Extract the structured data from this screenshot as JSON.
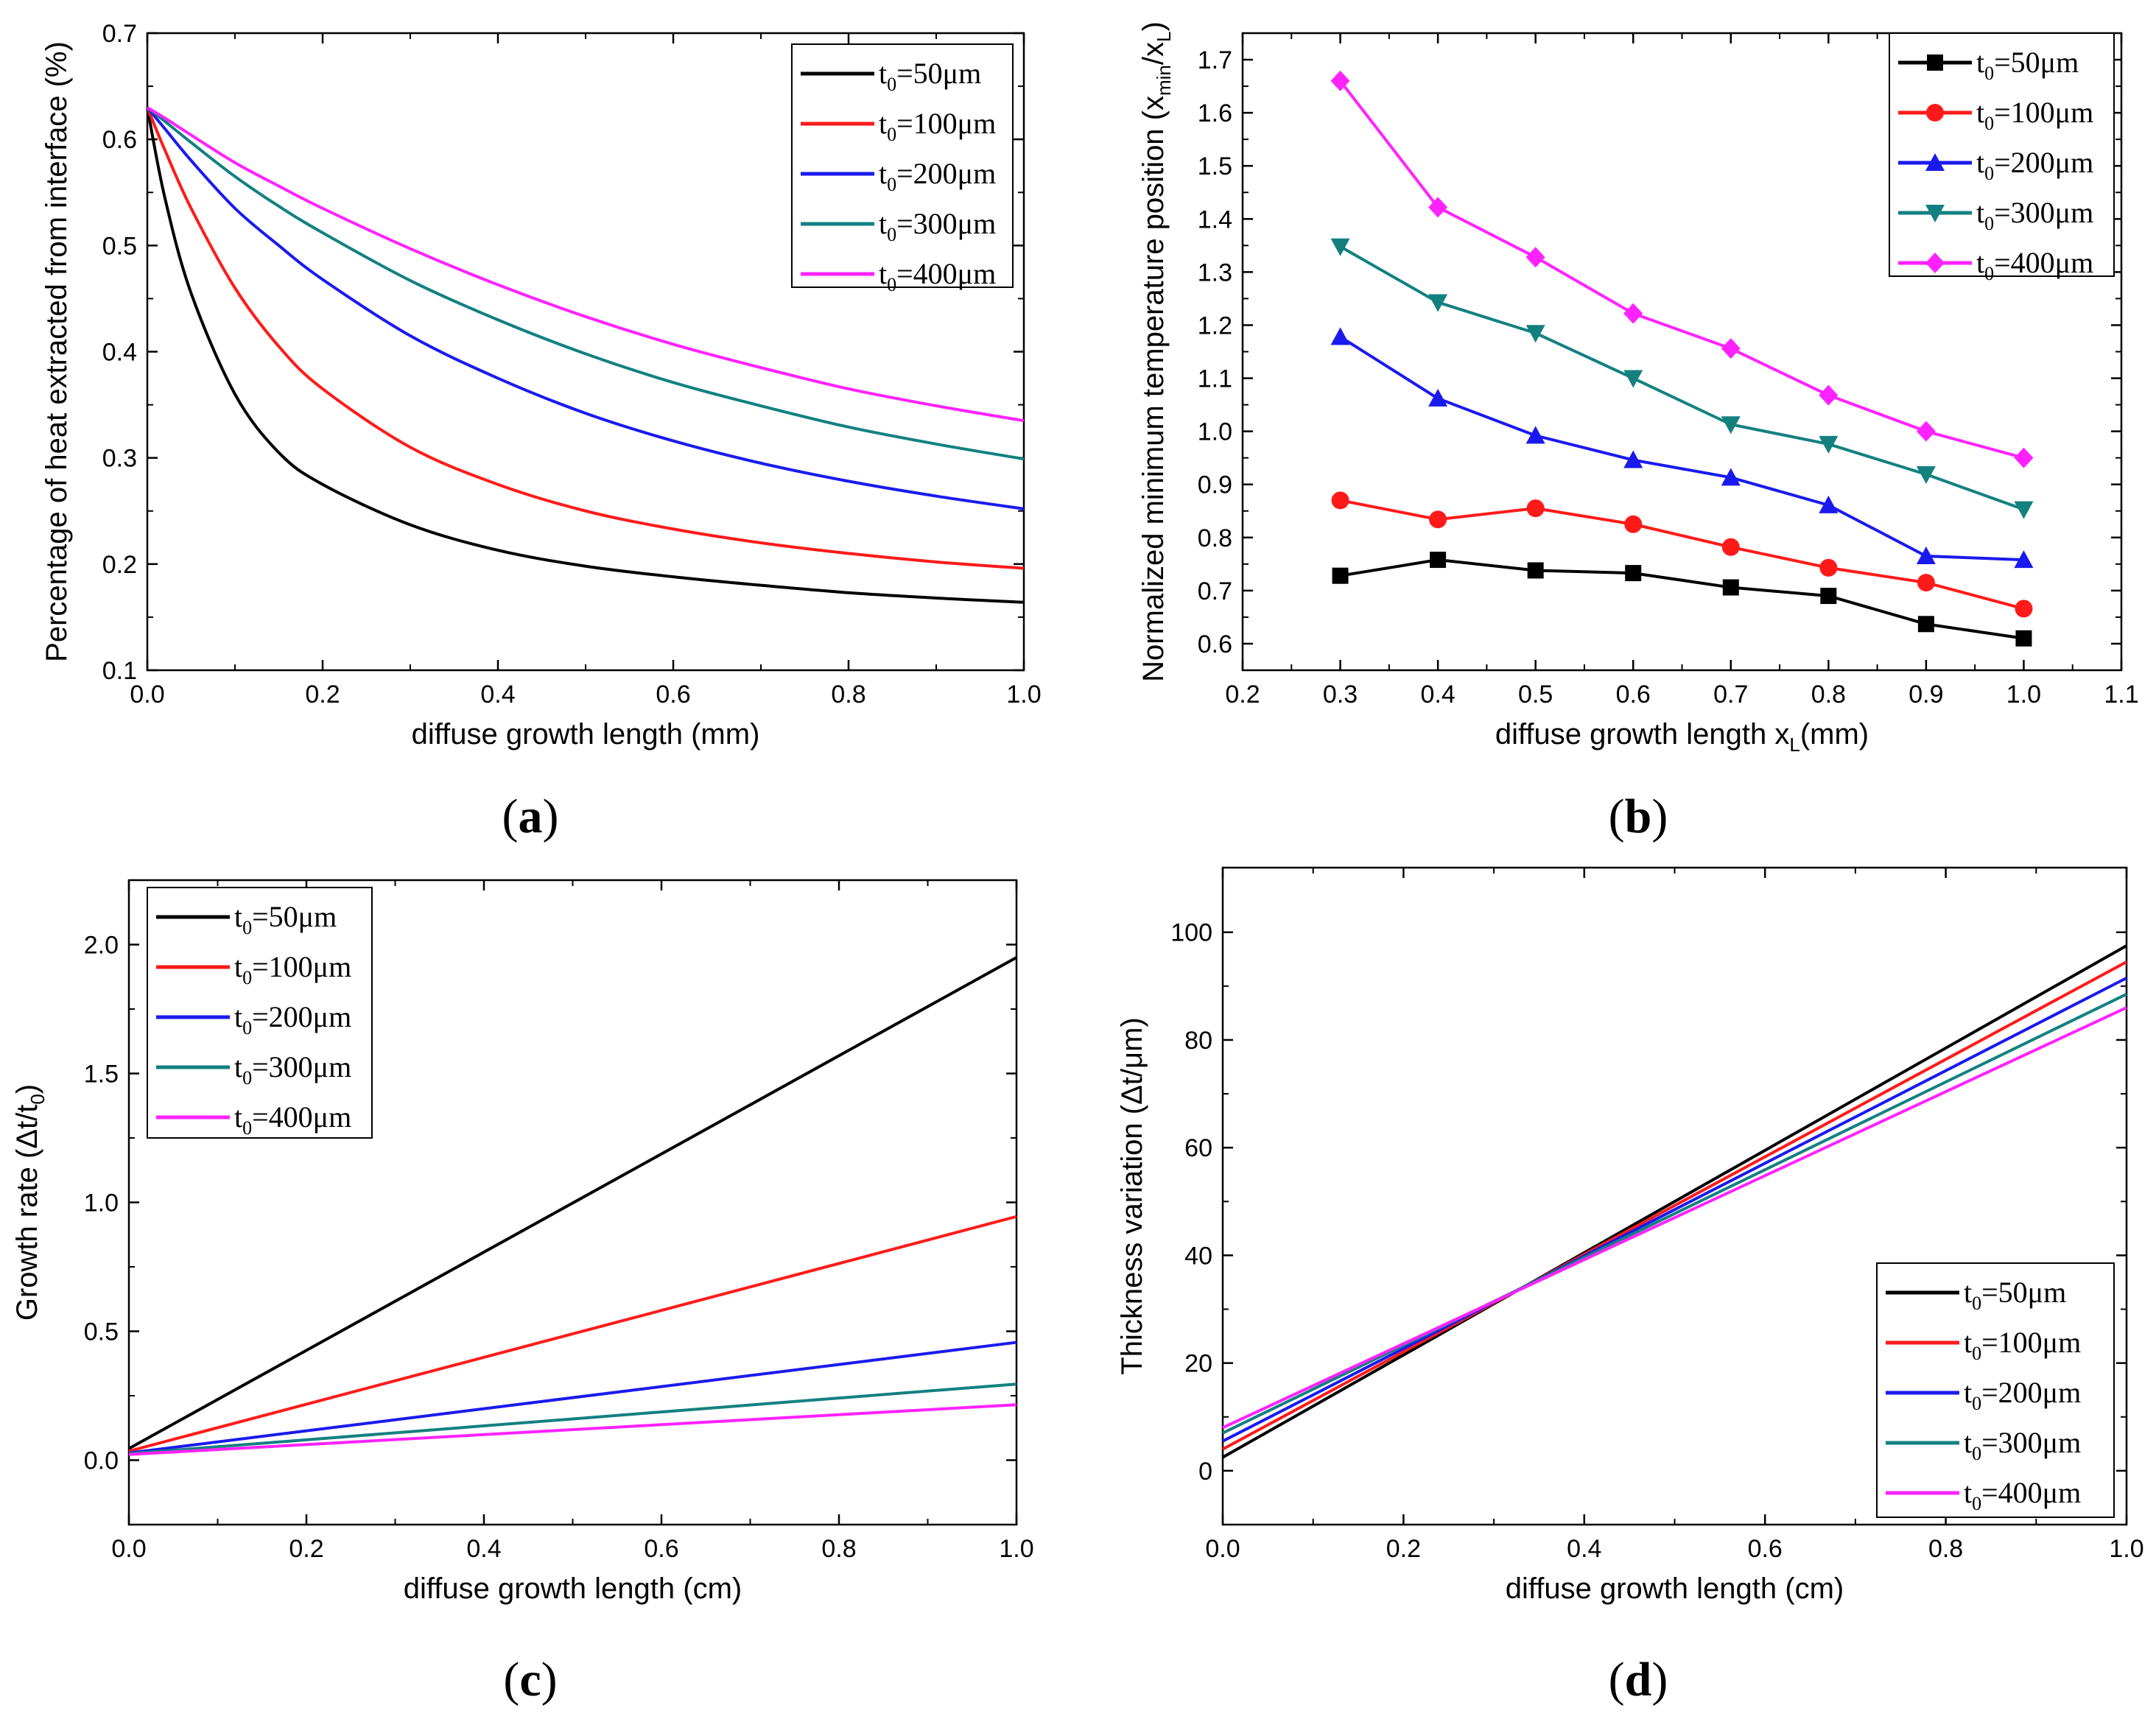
{
  "colors": {
    "t50": "#000000",
    "t100": "#ff1a1a",
    "t200": "#1a1aee",
    "t300": "#138080",
    "t400": "#ff22ff"
  },
  "panels": {
    "a": {
      "label_open": "(",
      "label_letter": "a",
      "label_close": ")"
    },
    "b": {
      "label_open": "(",
      "label_letter": "b",
      "label_close": ")"
    },
    "c": {
      "label_open": "(",
      "label_letter": "c",
      "label_close": ")"
    },
    "d": {
      "label_open": "(",
      "label_letter": "d",
      "label_close": ")"
    }
  },
  "chart_data": [
    {
      "id": "a",
      "type": "line",
      "title": "",
      "xlabel": "diffuse growth length (mm)",
      "ylabel": "Percentage of heat extracted from interface (%)",
      "xlim": [
        0.0,
        1.0
      ],
      "ylim": [
        0.1,
        0.7
      ],
      "xticks": [
        "0.0",
        "0.2",
        "0.4",
        "0.6",
        "0.8",
        "1.0"
      ],
      "yticks": [
        "0.1",
        "0.2",
        "0.3",
        "0.4",
        "0.5",
        "0.6",
        "0.7"
      ],
      "legend_position": "top-right",
      "x": [
        0.0,
        0.02,
        0.05,
        0.1,
        0.15,
        0.2,
        0.3,
        0.4,
        0.5,
        0.6,
        0.7,
        0.8,
        0.9,
        1.0
      ],
      "series": [
        {
          "name": "t0=50μm",
          "legend_sub": "0",
          "legend_rest": "=50μm",
          "color_key": "t50",
          "values": [
            0.63,
            0.545,
            0.455,
            0.36,
            0.305,
            0.275,
            0.237,
            0.213,
            0.198,
            0.188,
            0.18,
            0.173,
            0.168,
            0.164
          ]
        },
        {
          "name": "t0=100μm",
          "legend_sub": "0",
          "legend_rest": "=100μm",
          "color_key": "t100",
          "values": [
            0.63,
            0.59,
            0.535,
            0.46,
            0.405,
            0.365,
            0.31,
            0.275,
            0.25,
            0.233,
            0.22,
            0.21,
            0.202,
            0.196
          ]
        },
        {
          "name": "t0=200μm",
          "legend_sub": "0",
          "legend_rest": "=200μm",
          "color_key": "t200",
          "values": [
            0.63,
            0.61,
            0.58,
            0.535,
            0.5,
            0.468,
            0.415,
            0.375,
            0.342,
            0.316,
            0.295,
            0.278,
            0.264,
            0.252
          ]
        },
        {
          "name": "t0=300μm",
          "legend_sub": "0",
          "legend_rest": "=300μm",
          "color_key": "t300",
          "values": [
            0.63,
            0.617,
            0.597,
            0.565,
            0.537,
            0.512,
            0.467,
            0.43,
            0.398,
            0.371,
            0.349,
            0.329,
            0.313,
            0.299
          ]
        },
        {
          "name": "t0=400μm",
          "legend_sub": "0",
          "legend_rest": "=400μm",
          "color_key": "t400",
          "values": [
            0.63,
            0.62,
            0.604,
            0.578,
            0.556,
            0.535,
            0.497,
            0.463,
            0.433,
            0.407,
            0.385,
            0.365,
            0.349,
            0.335
          ]
        }
      ]
    },
    {
      "id": "b",
      "type": "line",
      "title": "",
      "xlabel_main": "diffuse growth length x",
      "xlabel_sub": "L",
      "xlabel_rest": "(mm)",
      "ylabel_main": "Normalized minimum temperature position (x",
      "ylabel_sub1": "min",
      "ylabel_mid": "/x",
      "ylabel_sub2": "L",
      "ylabel_close": ")",
      "xlim": [
        0.2,
        1.1
      ],
      "ylim": [
        0.55,
        1.75
      ],
      "xticks": [
        "0.2",
        "0.3",
        "0.4",
        "0.5",
        "0.6",
        "0.7",
        "0.8",
        "0.9",
        "1.0",
        "1.1"
      ],
      "yticks": [
        "0.6",
        "0.7",
        "0.8",
        "0.9",
        "1.0",
        "1.1",
        "1.2",
        "1.3",
        "1.4",
        "1.5",
        "1.6",
        "1.7"
      ],
      "legend_position": "top-right",
      "x": [
        0.3,
        0.4,
        0.5,
        0.6,
        0.7,
        0.8,
        0.9,
        1.0
      ],
      "series": [
        {
          "name": "t0=50μm",
          "legend_sub": "0",
          "legend_rest": "=50μm",
          "color_key": "t50",
          "marker": "square",
          "values": [
            0.728,
            0.758,
            0.738,
            0.733,
            0.706,
            0.69,
            0.637,
            0.61
          ]
        },
        {
          "name": "t0=100μm",
          "legend_sub": "0",
          "legend_rest": "=100μm",
          "color_key": "t100",
          "marker": "circle",
          "values": [
            0.87,
            0.834,
            0.855,
            0.825,
            0.782,
            0.743,
            0.715,
            0.666
          ]
        },
        {
          "name": "t0=200μm",
          "legend_sub": "0",
          "legend_rest": "=200μm",
          "color_key": "t200",
          "marker": "triangle-up",
          "values": [
            1.178,
            1.062,
            0.992,
            0.946,
            0.913,
            0.861,
            0.765,
            0.758
          ]
        },
        {
          "name": "t0=300μm",
          "legend_sub": "0",
          "legend_rest": "=300μm",
          "color_key": "t300",
          "marker": "triangle-down",
          "values": [
            1.348,
            1.243,
            1.185,
            1.1,
            1.013,
            0.976,
            0.919,
            0.853
          ]
        },
        {
          "name": "t0=400μm",
          "legend_sub": "0",
          "legend_rest": "=400μm",
          "color_key": "t400",
          "marker": "diamond",
          "values": [
            1.66,
            1.422,
            1.328,
            1.222,
            1.156,
            1.068,
            1.0,
            0.95
          ]
        }
      ]
    },
    {
      "id": "c",
      "type": "line",
      "title": "",
      "xlabel": "diffuse growth length (cm)",
      "ylabel_main": "Growth rate (Δt/t",
      "ylabel_sub": "0",
      "ylabel_close": ")",
      "xlim": [
        0.0,
        1.0
      ],
      "ylim": [
        -0.25,
        2.25
      ],
      "xticks": [
        "0.0",
        "0.2",
        "0.4",
        "0.6",
        "0.8",
        "1.0"
      ],
      "yticks": [
        "0.0",
        "0.5",
        "1.0",
        "1.5",
        "2.0"
      ],
      "legend_position": "top-left",
      "x": [
        0.0,
        1.0
      ],
      "series": [
        {
          "name": "t0=50μm",
          "legend_sub": "0",
          "legend_rest": "=50μm",
          "color_key": "t50",
          "values": [
            0.045,
            1.95
          ]
        },
        {
          "name": "t0=100μm",
          "legend_sub": "0",
          "legend_rest": "=100μm",
          "color_key": "t100",
          "values": [
            0.035,
            0.945
          ]
        },
        {
          "name": "t0=200μm",
          "legend_sub": "0",
          "legend_rest": "=200μm",
          "color_key": "t200",
          "values": [
            0.028,
            0.457
          ]
        },
        {
          "name": "t0=300μm",
          "legend_sub": "0",
          "legend_rest": "=300μm",
          "color_key": "t300",
          "values": [
            0.025,
            0.295
          ]
        },
        {
          "name": "t0=400μm",
          "legend_sub": "0",
          "legend_rest": "=400μm",
          "color_key": "t400",
          "values": [
            0.022,
            0.215
          ]
        }
      ]
    },
    {
      "id": "d",
      "type": "line",
      "title": "",
      "xlabel": "diffuse growth length (cm)",
      "ylabel": "Thickness variation (Δt/μm)",
      "xlim": [
        0.0,
        1.0
      ],
      "ylim": [
        -10,
        112
      ],
      "xticks": [
        "0.0",
        "0.2",
        "0.4",
        "0.6",
        "0.8",
        "1.0"
      ],
      "yticks": [
        "0",
        "20",
        "40",
        "60",
        "80",
        "100"
      ],
      "legend_position": "bottom-right",
      "x": [
        0.0,
        1.0
      ],
      "series": [
        {
          "name": "t0=50μm",
          "legend_sub": "0",
          "legend_rest": "=50μm",
          "color_key": "t50",
          "values": [
            2.5,
            97.5
          ]
        },
        {
          "name": "t0=100μm",
          "legend_sub": "0",
          "legend_rest": "=100μm",
          "color_key": "t100",
          "values": [
            4.0,
            94.5
          ]
        },
        {
          "name": "t0=200μm",
          "legend_sub": "0",
          "legend_rest": "=200μm",
          "color_key": "t200",
          "values": [
            5.5,
            91.5
          ]
        },
        {
          "name": "t0=300μm",
          "legend_sub": "0",
          "legend_rest": "=300μm",
          "color_key": "t300",
          "values": [
            7.0,
            88.5
          ]
        },
        {
          "name": "t0=400μm",
          "legend_sub": "0",
          "legend_rest": "=400μm",
          "color_key": "t400",
          "values": [
            8.0,
            86.0
          ]
        }
      ]
    }
  ]
}
